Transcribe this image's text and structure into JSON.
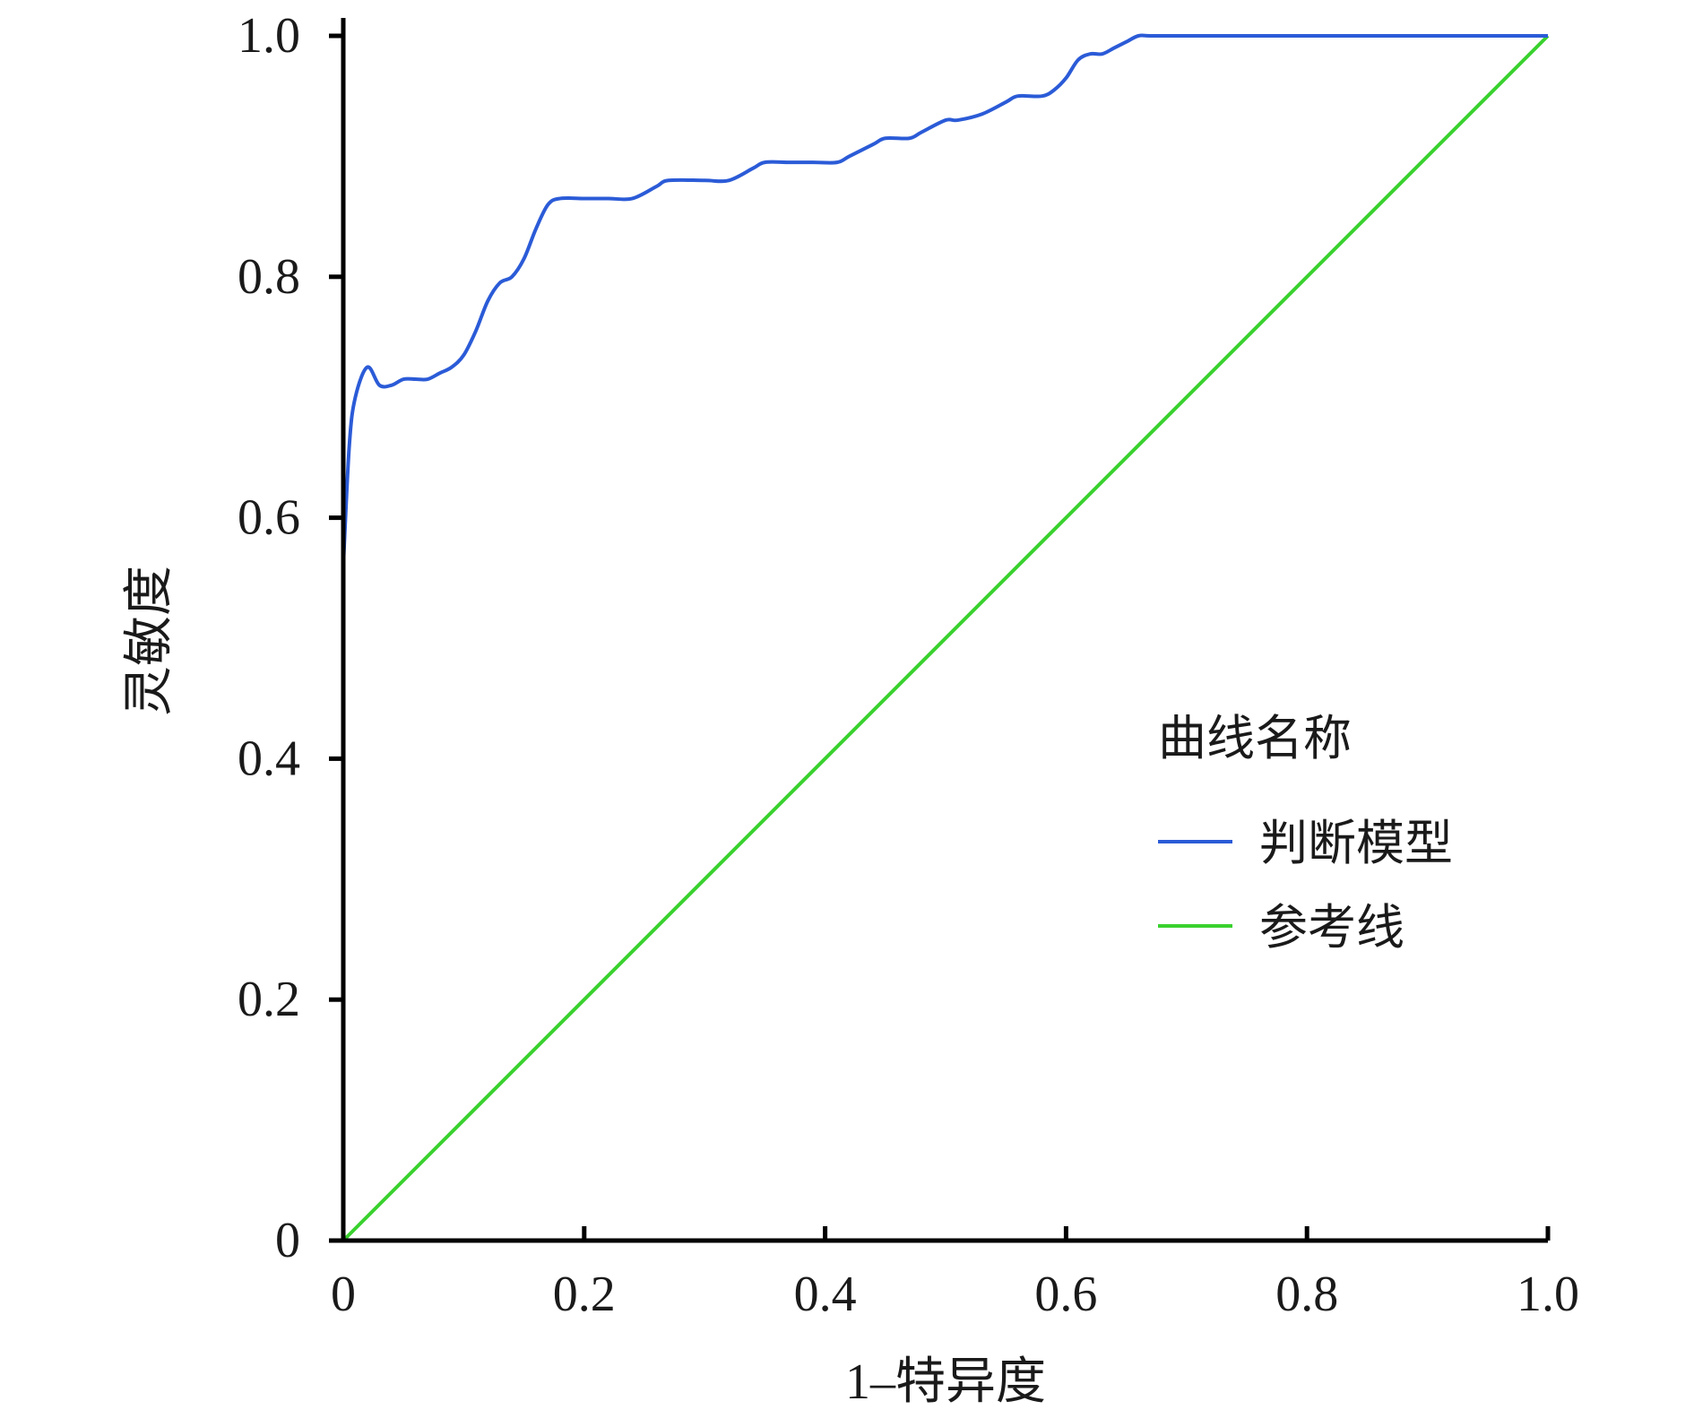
{
  "chart_data": {
    "type": "line",
    "title": "",
    "xlabel": "1–特异度",
    "ylabel": "灵敏度",
    "xlim": [
      0,
      1.0
    ],
    "ylim": [
      0,
      1.0
    ],
    "x_ticks": [
      "0",
      "0.2",
      "0.4",
      "0.6",
      "0.8",
      "1.0"
    ],
    "y_ticks": [
      "0",
      "0.2",
      "0.4",
      "0.6",
      "0.8",
      "1.0"
    ],
    "grid": false,
    "legend": {
      "title": "曲线名称",
      "position": "right-middle",
      "entries": [
        "判断模型",
        "参考线"
      ]
    },
    "series": [
      {
        "name": "判断模型",
        "color": "#2b5bd7",
        "x": [
          0.0,
          0.005,
          0.01,
          0.02,
          0.03,
          0.04,
          0.05,
          0.06,
          0.07,
          0.08,
          0.09,
          0.1,
          0.11,
          0.12,
          0.13,
          0.14,
          0.15,
          0.16,
          0.17,
          0.18,
          0.2,
          0.22,
          0.24,
          0.26,
          0.27,
          0.3,
          0.32,
          0.34,
          0.35,
          0.37,
          0.39,
          0.41,
          0.42,
          0.44,
          0.45,
          0.47,
          0.48,
          0.5,
          0.51,
          0.53,
          0.55,
          0.56,
          0.58,
          0.59,
          0.6,
          0.61,
          0.62,
          0.63,
          0.64,
          0.65,
          0.66,
          0.67,
          0.7,
          0.75,
          0.8,
          0.85,
          0.9,
          0.95,
          1.0
        ],
        "y": [
          0.56,
          0.66,
          0.7,
          0.725,
          0.71,
          0.71,
          0.715,
          0.715,
          0.715,
          0.72,
          0.725,
          0.735,
          0.755,
          0.78,
          0.795,
          0.8,
          0.815,
          0.84,
          0.86,
          0.865,
          0.865,
          0.865,
          0.865,
          0.875,
          0.88,
          0.88,
          0.88,
          0.89,
          0.895,
          0.895,
          0.895,
          0.895,
          0.9,
          0.91,
          0.915,
          0.915,
          0.92,
          0.93,
          0.93,
          0.935,
          0.945,
          0.95,
          0.95,
          0.955,
          0.965,
          0.98,
          0.985,
          0.985,
          0.99,
          0.995,
          1.0,
          1.0,
          1.0,
          1.0,
          1.0,
          1.0,
          1.0,
          1.0,
          1.0
        ]
      },
      {
        "name": "参考线",
        "color": "#3ad12f",
        "x": [
          0.0,
          1.0
        ],
        "y": [
          0.0,
          1.0
        ]
      }
    ]
  }
}
